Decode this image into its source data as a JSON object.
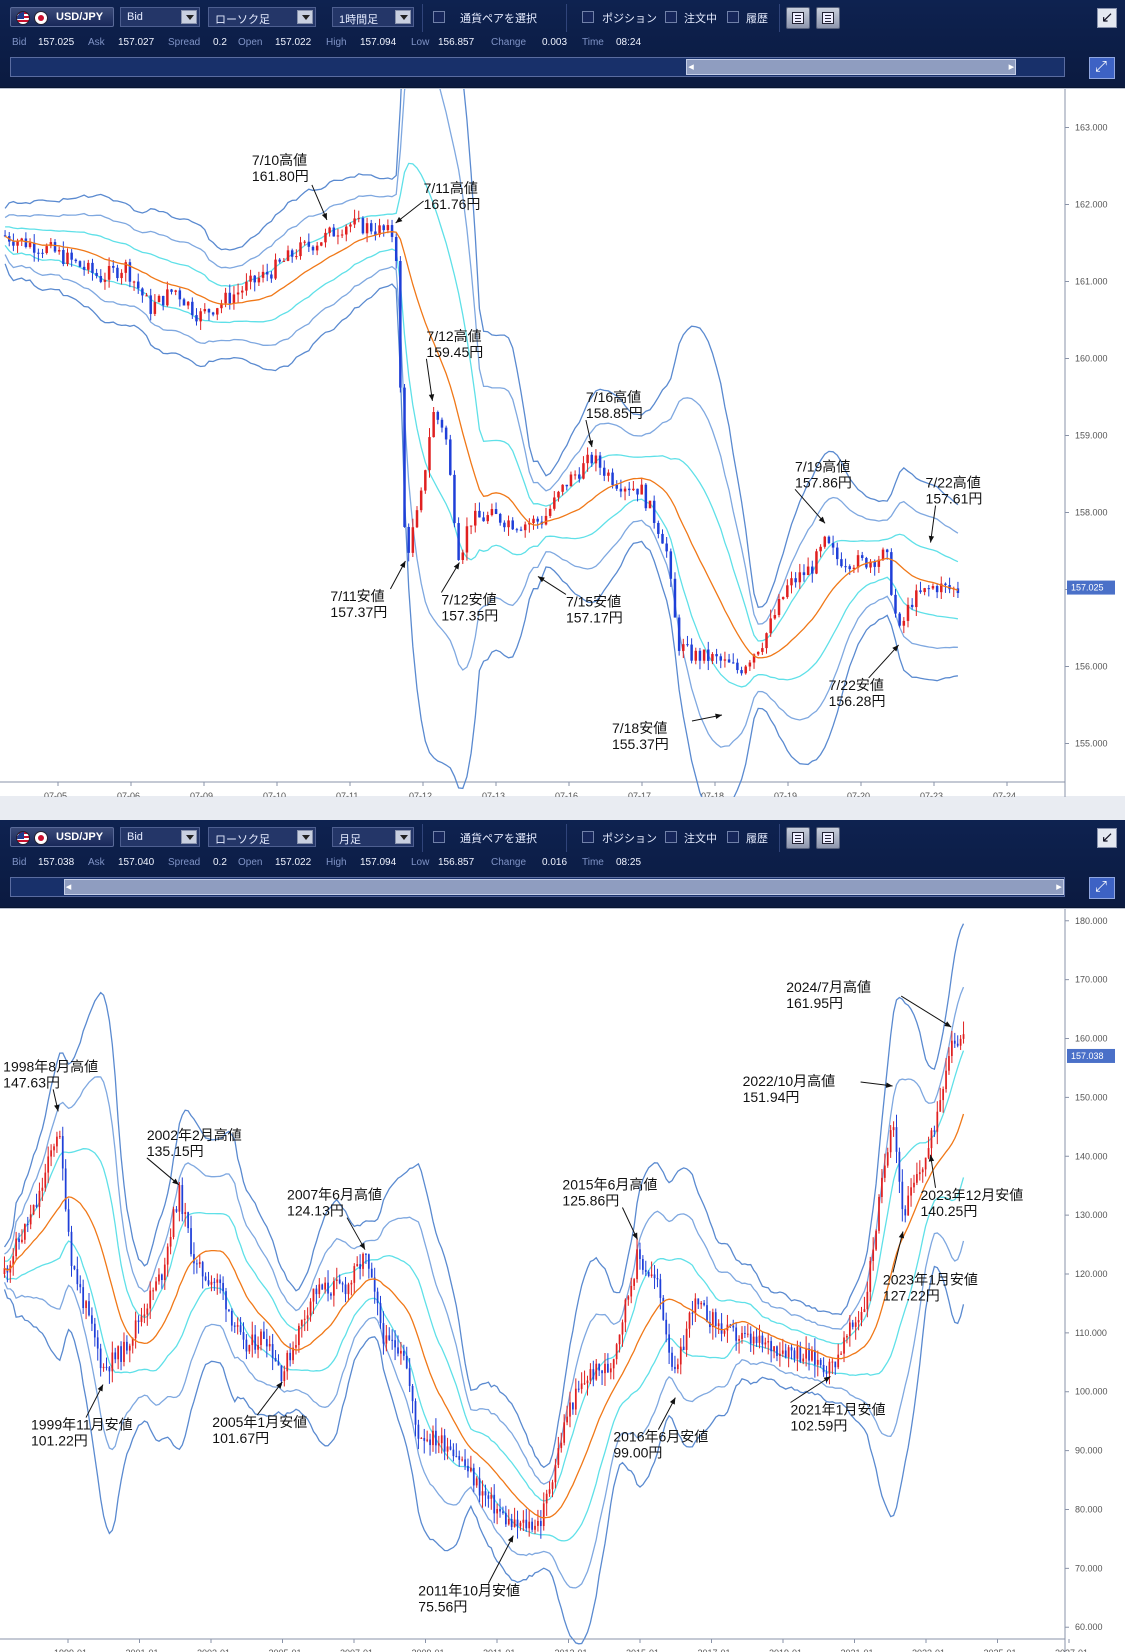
{
  "colors": {
    "mid": "#f07818",
    "inner": "#5fe0e8",
    "middle": "#7fa8e0",
    "outer": "#5a8ad0",
    "bull": "#e02020",
    "bear": "#1f3fd8"
  },
  "panels": [
    {
      "toolbar": {
        "pair": "USD/JPY",
        "price_type": "Bid",
        "chart_type": "ローソク足",
        "timeframe": "1時間足",
        "select_pair": "通貨ペアを選択",
        "position": "ポジション",
        "orders": "注文中",
        "history": "履歴"
      },
      "quote": [
        {
          "label": "Bid",
          "value": "157.025"
        },
        {
          "label": "Ask",
          "value": "157.027"
        },
        {
          "label": "Spread",
          "value": "0.2"
        },
        {
          "label": "Open",
          "value": "157.022"
        },
        {
          "label": "High",
          "value": "157.094"
        },
        {
          "label": "Low",
          "value": "156.857"
        },
        {
          "label": "Change",
          "value": "0.003"
        },
        {
          "label": "Time",
          "value": "08:24"
        }
      ],
      "scroll_position": 0.64
    },
    {
      "toolbar": {
        "pair": "USD/JPY",
        "price_type": "Bid",
        "chart_type": "ローソク足",
        "timeframe": "月足",
        "select_pair": "通貨ペアを選択",
        "position": "ポジション",
        "orders": "注文中",
        "history": "履歴"
      },
      "quote": [
        {
          "label": "Bid",
          "value": "157.038"
        },
        {
          "label": "Ask",
          "value": "157.040"
        },
        {
          "label": "Spread",
          "value": "0.2"
        },
        {
          "label": "Open",
          "value": "157.022"
        },
        {
          "label": "High",
          "value": "157.094"
        },
        {
          "label": "Low",
          "value": "156.857"
        },
        {
          "label": "Change",
          "value": "0.016"
        },
        {
          "label": "Time",
          "value": "08:25"
        }
      ],
      "scroll_position": 0.05
    }
  ],
  "chart_data": [
    {
      "type": "candlestick",
      "title": "",
      "ylim": [
        154.5,
        163.5
      ],
      "y_ticks": [
        "155.000",
        "156.000",
        "157.000",
        "158.000",
        "159.000",
        "160.000",
        "161.000",
        "162.000",
        "163.000"
      ],
      "x_ticks": [
        "07-05",
        "07-06",
        "07-09",
        "07-10",
        "07-11",
        "07-12",
        "07-13",
        "07-16",
        "07-17",
        "07-18",
        "07-19",
        "07-20",
        "07-23",
        "07-24"
      ],
      "last_price": "157.025",
      "close_path": [
        [
          0,
          161.6
        ],
        [
          2,
          161.4
        ],
        [
          4,
          161.05
        ],
        [
          5,
          161.2
        ],
        [
          6,
          160.65
        ],
        [
          7,
          160.9
        ],
        [
          8,
          160.55
        ],
        [
          9,
          160.75
        ],
        [
          10,
          160.95
        ],
        [
          11,
          161.15
        ],
        [
          12,
          161.4
        ],
        [
          13,
          161.55
        ],
        [
          14,
          161.75
        ],
        [
          15,
          161.7
        ],
        [
          16,
          161.6
        ],
        [
          16.4,
          157.4
        ],
        [
          17,
          158.1
        ],
        [
          17.5,
          159.3
        ],
        [
          18,
          159.1
        ],
        [
          18.6,
          157.4
        ],
        [
          19,
          157.9
        ],
        [
          20,
          157.95
        ],
        [
          21,
          157.85
        ],
        [
          22,
          157.9
        ],
        [
          23,
          158.4
        ],
        [
          24,
          158.7
        ],
        [
          25,
          158.4
        ],
        [
          26,
          158.3
        ],
        [
          27,
          157.6
        ],
        [
          27.5,
          156.3
        ],
        [
          28,
          156.15
        ],
        [
          29,
          156.1
        ],
        [
          30,
          155.95
        ],
        [
          31,
          156.35
        ],
        [
          32,
          157.05
        ],
        [
          33,
          157.3
        ],
        [
          33.5,
          157.6
        ],
        [
          34,
          157.4
        ],
        [
          35,
          157.35
        ],
        [
          36,
          157.45
        ],
        [
          36.5,
          156.4
        ],
        [
          37,
          156.85
        ],
        [
          38,
          157.05
        ],
        [
          38.6,
          157.0
        ]
      ],
      "annotations": [
        {
          "label": "7/10高値",
          "value": "161.80円",
          "x": 13.2,
          "y": 161.8
        },
        {
          "label": "7/11高値",
          "value": "161.76円",
          "x": 16.0,
          "y": 161.76
        },
        {
          "label": "7/11安値",
          "value": "157.37円",
          "x": 16.4,
          "y": 157.37
        },
        {
          "label": "7/12高値",
          "value": "159.45円",
          "x": 17.5,
          "y": 159.45
        },
        {
          "label": "7/12安値",
          "value": "157.35円",
          "x": 18.6,
          "y": 157.35
        },
        {
          "label": "7/15安値",
          "value": "157.17円",
          "x": 21.8,
          "y": 157.17
        },
        {
          "label": "7/16高値",
          "value": "158.85円",
          "x": 24.0,
          "y": 158.85
        },
        {
          "label": "7/18安値",
          "value": "155.37円",
          "x": 29.3,
          "y": 155.37
        },
        {
          "label": "7/19高値",
          "value": "157.86円",
          "x": 33.5,
          "y": 157.86
        },
        {
          "label": "7/22安値",
          "value": "156.28円",
          "x": 36.5,
          "y": 156.28
        },
        {
          "label": "7/22高値",
          "value": "157.61円",
          "x": 37.8,
          "y": 157.61
        }
      ]
    },
    {
      "type": "candlestick",
      "title": "",
      "ylim": [
        58,
        182
      ],
      "y_ticks": [
        "60.000",
        "70.000",
        "80.000",
        "90.000",
        "100.000",
        "110.000",
        "120.000",
        "130.000",
        "140.000",
        "150.000",
        "160.000",
        "170.000",
        "180.000"
      ],
      "x_ticks": [
        "1999-01",
        "2001-01",
        "2003-01",
        "2005-01",
        "2007-01",
        "2009-01",
        "2011-01",
        "2013-01",
        "2015-01",
        "2017-01",
        "2019-01",
        "2021-01",
        "2023-01",
        "2025-01",
        "2027-01"
      ],
      "last_price": "157.038",
      "close_path": [
        [
          1997.0,
          120
        ],
        [
          1998.0,
          132
        ],
        [
          1998.6,
          145
        ],
        [
          1999.0,
          122
        ],
        [
          1999.9,
          104
        ],
        [
          2000.5,
          107
        ],
        [
          2001.0,
          113
        ],
        [
          2001.6,
          120
        ],
        [
          2002.1,
          134
        ],
        [
          2002.6,
          121
        ],
        [
          2003.3,
          118
        ],
        [
          2004.0,
          107
        ],
        [
          2004.6,
          110
        ],
        [
          2005.1,
          103
        ],
        [
          2006.0,
          117
        ],
        [
          2007.0,
          118
        ],
        [
          2007.5,
          123
        ],
        [
          2008.1,
          108
        ],
        [
          2008.6,
          108
        ],
        [
          2009.0,
          93
        ],
        [
          2010.0,
          91
        ],
        [
          2011.0,
          82
        ],
        [
          2011.8,
          77
        ],
        [
          2012.6,
          78
        ],
        [
          2013.4,
          97
        ],
        [
          2014.0,
          103
        ],
        [
          2014.6,
          104
        ],
        [
          2015.4,
          123
        ],
        [
          2016.0,
          118
        ],
        [
          2016.5,
          102
        ],
        [
          2017.0,
          115
        ],
        [
          2018.0,
          110
        ],
        [
          2019.0,
          108
        ],
        [
          2020.0,
          107
        ],
        [
          2021.0,
          104
        ],
        [
          2022.0,
          115
        ],
        [
          2022.8,
          148
        ],
        [
          2023.1,
          130
        ],
        [
          2023.9,
          142
        ],
        [
          2024.5,
          160
        ]
      ],
      "annotations": [
        {
          "label": "1998年8月高値",
          "value": "147.63円",
          "x": 1998.6,
          "y": 147.63
        },
        {
          "label": "1999年11月安値",
          "value": "101.22円",
          "x": 1999.9,
          "y": 101.22
        },
        {
          "label": "2002年2月高値",
          "value": "135.15円",
          "x": 2002.1,
          "y": 135.15
        },
        {
          "label": "2005年1月安値",
          "value": "101.67円",
          "x": 2005.1,
          "y": 101.67
        },
        {
          "label": "2007年6月高値",
          "value": "124.13円",
          "x": 2007.5,
          "y": 124.13
        },
        {
          "label": "2011年10月安値",
          "value": "75.56円",
          "x": 2011.8,
          "y": 75.56
        },
        {
          "label": "2015年6月高値",
          "value": "125.86円",
          "x": 2015.4,
          "y": 125.86
        },
        {
          "label": "2016年6月安値",
          "value": "99.00円",
          "x": 2016.5,
          "y": 99.0
        },
        {
          "label": "2021年1月安値",
          "value": "102.59円",
          "x": 2021.0,
          "y": 102.59
        },
        {
          "label": "2022/10月高値",
          "value": "151.94円",
          "x": 2022.8,
          "y": 151.94
        },
        {
          "label": "2023年1月安値",
          "value": "127.22円",
          "x": 2023.1,
          "y": 127.22
        },
        {
          "label": "2023年12月安値",
          "value": "140.25円",
          "x": 2023.9,
          "y": 140.25
        },
        {
          "label": "2024/7月高値",
          "value": "161.95円",
          "x": 2024.5,
          "y": 161.95
        }
      ]
    }
  ]
}
